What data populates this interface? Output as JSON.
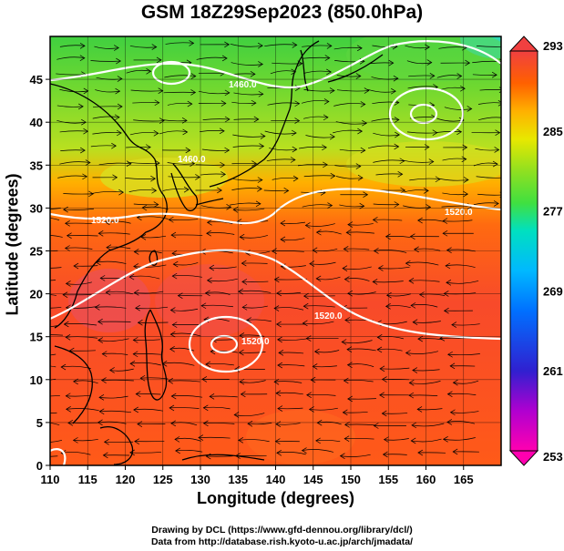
{
  "title": "GSM 18Z29Sep2023 (850.0hPa)",
  "x_axis_label": "Longitude (degrees)",
  "y_axis_label": "Latitude (degrees)",
  "credit_line_1": "Drawing by DCL (https://www.gfd-dennou.org/library/dcl/)",
  "credit_line_2": "Data from http://database.rish.kyoto-u.ac.jp/arch/jmadata/",
  "map": {
    "lon_range": [
      110,
      170
    ],
    "lat_range": [
      0,
      50
    ],
    "lon_ticks": [
      110,
      115,
      120,
      125,
      130,
      135,
      140,
      145,
      150,
      155,
      160,
      165
    ],
    "lat_ticks": [
      0,
      5,
      10,
      15,
      20,
      25,
      30,
      35,
      40,
      45
    ],
    "contour_labels": [
      "1460.0",
      "1520.0",
      "1520.0",
      "1520.0",
      "1520.0",
      "1460.0"
    ],
    "colorbar": {
      "ticks": [
        253,
        261,
        269,
        277,
        285,
        293
      ],
      "colors": [
        "#ff00b0",
        "#b000d0",
        "#3020d0",
        "#0070ff",
        "#00b8ff",
        "#00e0c0",
        "#40e040",
        "#90e020",
        "#e8e800",
        "#ffb000",
        "#ff6000",
        "#ff3010",
        "#f04040"
      ]
    },
    "field_colors": {
      "north_cyan": "#30d8c0",
      "north_green": "#40d040",
      "mid_yellow": "#d8e020",
      "south_orange": "#ff6a10",
      "south_red": "#f24a2a"
    }
  }
}
